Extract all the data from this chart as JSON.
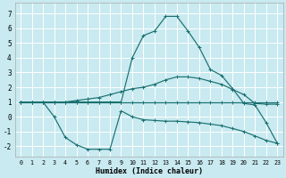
{
  "xlabel": "Humidex (Indice chaleur)",
  "xlim": [
    -0.5,
    23.5
  ],
  "ylim": [
    -2.7,
    7.7
  ],
  "xticks": [
    0,
    1,
    2,
    3,
    4,
    5,
    6,
    7,
    8,
    9,
    10,
    11,
    12,
    13,
    14,
    15,
    16,
    17,
    18,
    19,
    20,
    21,
    22,
    23
  ],
  "yticks": [
    -2,
    -1,
    0,
    1,
    2,
    3,
    4,
    5,
    6,
    7
  ],
  "bg_color": "#c8eaf0",
  "line_color": "#1a7070",
  "grid_color": "#ffffff",
  "lines": [
    {
      "x": [
        0,
        1,
        2,
        3,
        4,
        5,
        6,
        7,
        8,
        9,
        10,
        11,
        12,
        13,
        14,
        15,
        16,
        17,
        18,
        19,
        20,
        21,
        22,
        23
      ],
      "y": [
        1.0,
        1.0,
        1.0,
        1.0,
        1.0,
        1.0,
        1.0,
        1.0,
        1.0,
        1.0,
        1.0,
        1.0,
        1.0,
        1.0,
        1.0,
        1.0,
        1.0,
        1.0,
        1.0,
        1.0,
        1.0,
        1.0,
        1.0,
        1.0
      ]
    },
    {
      "x": [
        0,
        1,
        2,
        3,
        4,
        5,
        6,
        7,
        8,
        9,
        10,
        11,
        12,
        13,
        14,
        15,
        16,
        17,
        18,
        19,
        20,
        21,
        22,
        23
      ],
      "y": [
        1.0,
        1.0,
        1.0,
        1.0,
        1.0,
        1.1,
        1.2,
        1.3,
        1.5,
        1.7,
        1.9,
        2.0,
        2.2,
        2.5,
        2.7,
        2.7,
        2.6,
        2.4,
        2.2,
        1.85,
        1.5,
        0.9,
        0.85,
        0.85
      ]
    },
    {
      "x": [
        0,
        1,
        2,
        3,
        4,
        5,
        6,
        7,
        8,
        9,
        10,
        11,
        12,
        13,
        14,
        15,
        16,
        17,
        18,
        19,
        20,
        21,
        22,
        23
      ],
      "y": [
        1.0,
        1.0,
        1.0,
        0.0,
        -1.4,
        -1.9,
        -2.2,
        -2.2,
        -2.2,
        0.4,
        0.0,
        -0.2,
        -0.25,
        -0.3,
        -0.3,
        -0.35,
        -0.4,
        -0.5,
        -0.6,
        -0.8,
        -1.0,
        -1.3,
        -1.6,
        -1.8
      ]
    },
    {
      "x": [
        0,
        1,
        2,
        3,
        4,
        5,
        6,
        7,
        8,
        9,
        10,
        11,
        12,
        13,
        14,
        15,
        16,
        17,
        18,
        19,
        20,
        21,
        22,
        23
      ],
      "y": [
        1.0,
        1.0,
        1.0,
        1.0,
        1.0,
        1.0,
        1.0,
        1.0,
        1.0,
        1.0,
        4.0,
        5.5,
        5.8,
        6.8,
        6.8,
        5.8,
        4.7,
        3.2,
        2.8,
        1.9,
        0.9,
        0.8,
        -0.4,
        -1.8
      ]
    }
  ]
}
